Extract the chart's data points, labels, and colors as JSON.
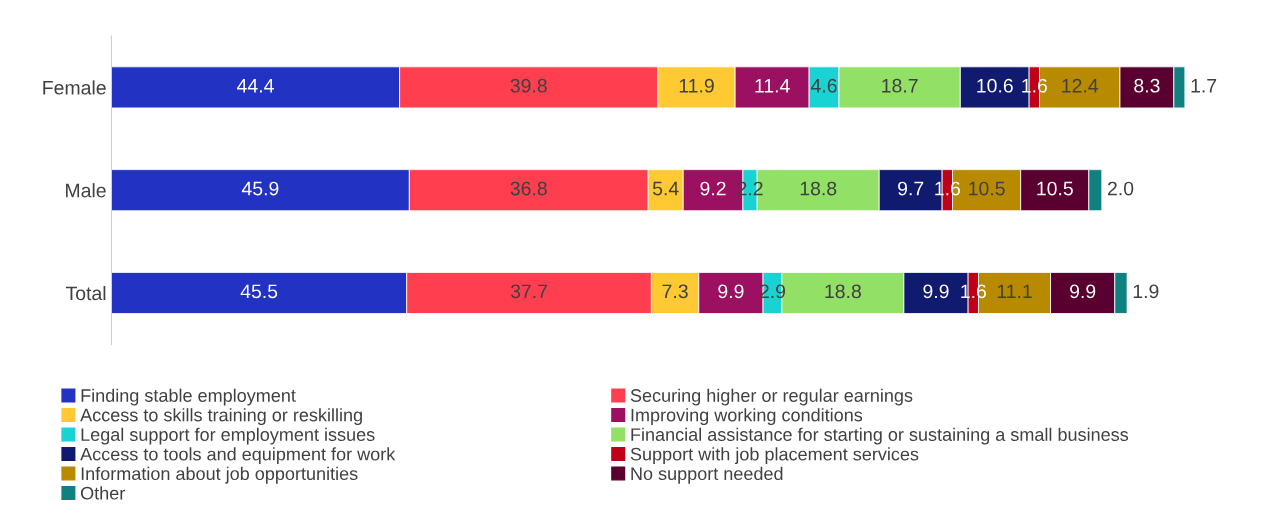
{
  "chart_data": {
    "type": "bar",
    "orientation": "horizontal",
    "stacked": true,
    "data_labels": true,
    "legend": "bottom",
    "grid": false,
    "tick_labels": "y",
    "categories": [
      "Female",
      "Male",
      "Total"
    ],
    "series": [
      {
        "name": "Finding stable employment",
        "color": "#2233c4",
        "values": [
          44.4,
          45.9,
          45.5
        ]
      },
      {
        "name": "Securing higher or regular earnings",
        "color": "#ff3f4f",
        "values": [
          39.8,
          36.8,
          37.7
        ]
      },
      {
        "name": "Access to skills training or reskilling",
        "color": "#ffc933",
        "values": [
          11.9,
          5.4,
          7.3
        ]
      },
      {
        "name": "Improving working conditions",
        "color": "#9b1060",
        "values": [
          11.4,
          9.2,
          9.9
        ]
      },
      {
        "name": "Legal support for employment issues",
        "color": "#19d3d3",
        "values": [
          4.6,
          2.2,
          2.9
        ]
      },
      {
        "name": "Financial assistance for starting or sustaining a small business",
        "color": "#92e065",
        "values": [
          18.7,
          18.8,
          18.8
        ]
      },
      {
        "name": "Access to tools and equipment for work",
        "color": "#101a6e",
        "values": [
          10.6,
          9.7,
          9.9
        ]
      },
      {
        "name": "Support with job placement services",
        "color": "#c00018",
        "values": [
          1.6,
          1.6,
          1.6
        ]
      },
      {
        "name": "Information about job opportunities",
        "color": "#b88a00",
        "values": [
          12.4,
          10.5,
          11.1
        ]
      },
      {
        "name": "No support needed",
        "color": "#5a0030",
        "values": [
          8.3,
          10.5,
          9.9
        ]
      },
      {
        "name": "Other",
        "color": "#108080",
        "values": [
          1.7,
          2.0,
          1.9
        ],
        "value_labels": [
          "1.7",
          "2.0",
          "1.9"
        ]
      }
    ]
  }
}
